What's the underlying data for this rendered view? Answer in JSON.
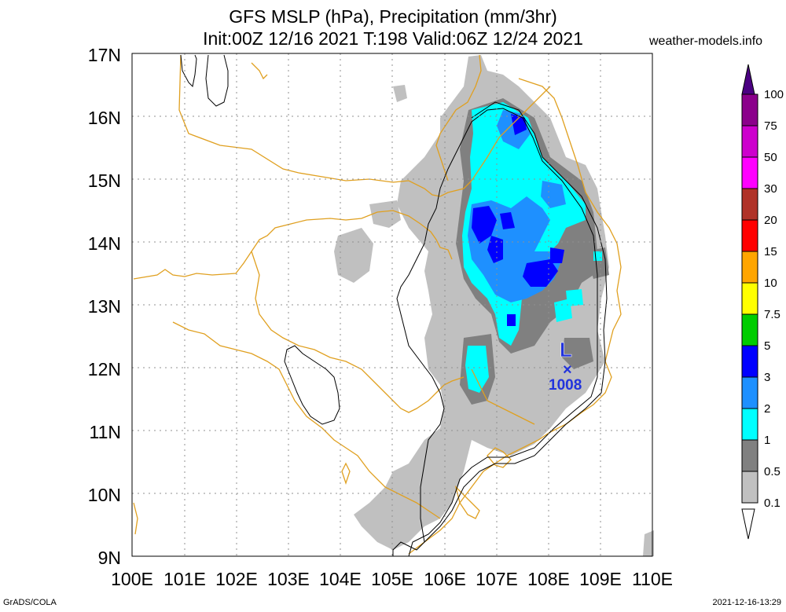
{
  "title": {
    "line1": "GFS MSLP (hPa), Precipitation (mm/3hr)",
    "line2": "Init:00Z 12/16 2021 T:198 Valid:06Z 12/24 2021"
  },
  "brand": "weather-models.info",
  "credit": "GrADS/COLA",
  "timestamp": "2021-12-16-13:29",
  "axes": {
    "lat_labels": [
      "17N",
      "16N",
      "15N",
      "14N",
      "13N",
      "12N",
      "11N",
      "10N",
      "9N"
    ],
    "lon_labels": [
      "100E",
      "101E",
      "102E",
      "103E",
      "104E",
      "105E",
      "106E",
      "107E",
      "108E",
      "109E",
      "110E"
    ]
  },
  "legend": {
    "labels": [
      "100",
      "75",
      "50",
      "30",
      "20",
      "15",
      "10",
      "7.5",
      "5",
      "3",
      "2",
      "1",
      "0.5",
      "0.1"
    ],
    "colors": [
      "#4b0082",
      "#8b008b",
      "#cd00cd",
      "#ff00ff",
      "#b03228",
      "#ff0000",
      "#ffa500",
      "#ffff00",
      "#00cd00",
      "#0000ff",
      "#1e90ff",
      "#00ffff",
      "#808080",
      "#c0c0c0"
    ]
  },
  "low_center": {
    "symbol": "L",
    "marker": "×",
    "pressure": "1008"
  },
  "colors": {
    "coast": "#e0a020",
    "isobar": "#000000",
    "grid": "#909090",
    "low": "#2233dd"
  }
}
